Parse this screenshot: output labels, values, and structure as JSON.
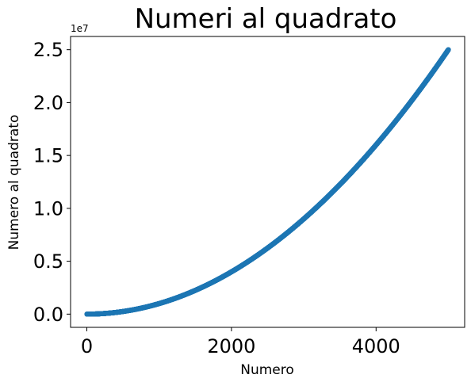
{
  "chart_data": {
    "type": "scatter",
    "title": "Numeri al quadrato",
    "xlabel": "Numero",
    "ylabel": "Numero al quadrato",
    "y_offset_label": "1e7",
    "x_range": [
      1,
      5000
    ],
    "function": "y = x^2",
    "xlim": [
      -225,
      5225
    ],
    "ylim": [
      -1250000,
      26250000
    ],
    "x_ticks": [
      0,
      2000,
      4000
    ],
    "x_tick_labels": [
      "0",
      "2000",
      "4000"
    ],
    "y_ticks": [
      0,
      5000000,
      10000000,
      15000000,
      20000000,
      25000000
    ],
    "y_tick_labels": [
      "0.0",
      "0.5",
      "1.0",
      "1.5",
      "2.0",
      "2.5"
    ],
    "series": [
      {
        "x": [
          1,
          250,
          500,
          750,
          1000,
          1250,
          1500,
          1750,
          2000,
          2250,
          2500,
          2750,
          3000,
          3250,
          3500,
          3750,
          4000,
          4250,
          4500,
          4750,
          5000
        ],
        "y": [
          1,
          62500,
          250000,
          562500,
          1000000,
          1562500,
          2250000,
          3062500,
          4000000,
          5062500,
          6250000,
          7562500,
          9000000,
          10562500,
          12250000,
          14062500,
          16000000,
          18062500,
          20250000,
          22562500,
          25000000
        ]
      }
    ],
    "grid": false,
    "colors": {
      "points": "#1f77b4",
      "axes": "#000000"
    }
  }
}
